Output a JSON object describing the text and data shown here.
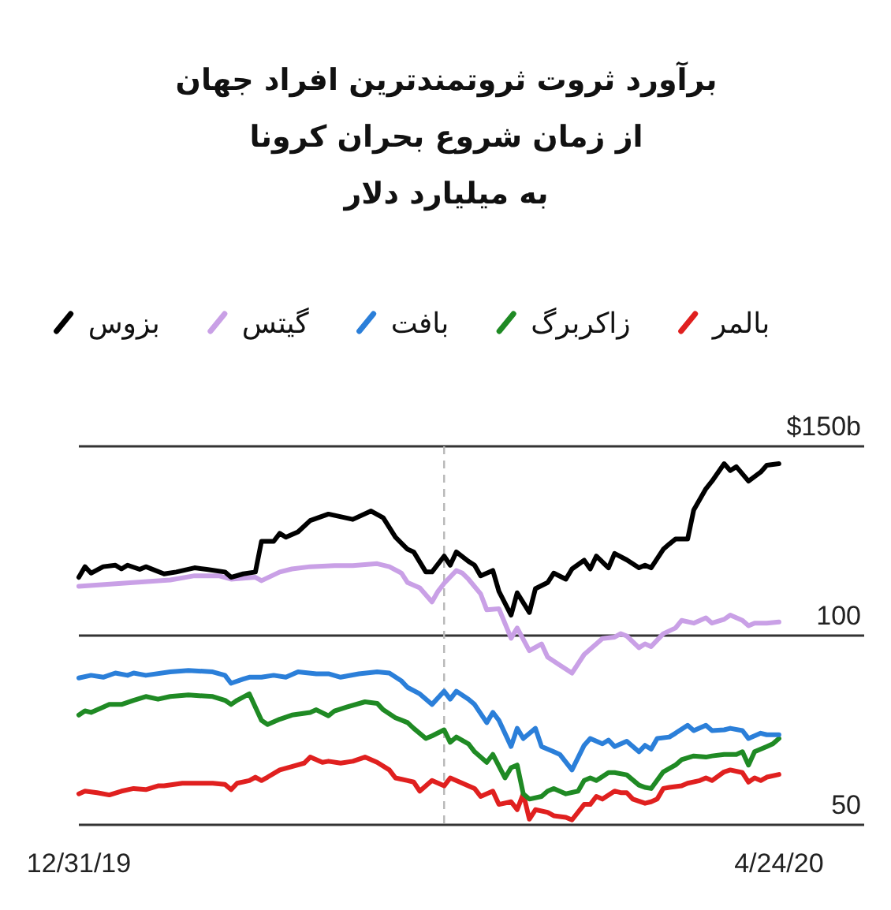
{
  "chart_data": {
    "type": "line",
    "title": "برآورد ثروت ثروتمندترین افراد جهان\nاز زمان شروع بحران کرونا",
    "subtitle": "به میلیارد دلار",
    "xlim": [
      "2019-12-31",
      "2020-05-08"
    ],
    "xticks": [
      {
        "value": "2019-12-31",
        "label": "12/31/19"
      },
      {
        "value": "2020-04-24",
        "label": "4/24/20"
      }
    ],
    "ylim": [
      50,
      150
    ],
    "yticks": [
      {
        "value": 150,
        "label": "$150b"
      },
      100,
      50
    ],
    "grid": "y",
    "legend": "top",
    "ref_lines": [
      {
        "axis": "x",
        "value": "2020-02-29",
        "color": "#b8b8b8",
        "line_style": "dashed"
      }
    ],
    "series": [
      {
        "name": "بالمر",
        "color": "#e0201f",
        "x": [
          "2019-12-31",
          "2020-01-01",
          "2020-01-03",
          "2020-01-05",
          "2020-01-07",
          "2020-01-09",
          "2020-01-11",
          "2020-01-13",
          "2020-01-14",
          "2020-01-17",
          "2020-01-19",
          "2020-01-22",
          "2020-01-24",
          "2020-01-25",
          "2020-01-26",
          "2020-01-28",
          "2020-01-29",
          "2020-01-30",
          "2020-01-31",
          "2020-02-02",
          "2020-02-04",
          "2020-02-06",
          "2020-02-07",
          "2020-02-09",
          "2020-02-10",
          "2020-02-12",
          "2020-02-14",
          "2020-02-16",
          "2020-02-18",
          "2020-02-20",
          "2020-02-21",
          "2020-02-23",
          "2020-02-24",
          "2020-02-25",
          "2020-02-27",
          "2020-02-29",
          "2020-03-01",
          "2020-03-03",
          "2020-03-05",
          "2020-03-06",
          "2020-03-08",
          "2020-03-09",
          "2020-03-11",
          "2020-03-12",
          "2020-03-13",
          "2020-03-14",
          "2020-03-15",
          "2020-03-17",
          "2020-03-18",
          "2020-03-20",
          "2020-03-21",
          "2020-03-23",
          "2020-03-24",
          "2020-03-25",
          "2020-03-26",
          "2020-03-28",
          "2020-03-29",
          "2020-03-30",
          "2020-03-31",
          "2020-04-02",
          "2020-04-03",
          "2020-04-04",
          "2020-04-05",
          "2020-04-06",
          "2020-04-08",
          "2020-04-09",
          "2020-04-11",
          "2020-04-12",
          "2020-04-13",
          "2020-04-15",
          "2020-04-16",
          "2020-04-18",
          "2020-04-19",
          "2020-04-20",
          "2020-04-21",
          "2020-04-22",
          "2020-04-24"
        ],
        "values": [
          58.2,
          58.9,
          58.5,
          57.9,
          58.9,
          59.6,
          59.3,
          60.3,
          60.3,
          61.0,
          61.0,
          61.0,
          60.7,
          59.3,
          61.0,
          61.7,
          62.6,
          61.7,
          62.6,
          64.5,
          65.4,
          66.3,
          67.9,
          66.5,
          66.8,
          66.3,
          66.8,
          67.9,
          66.5,
          64.5,
          62.4,
          61.7,
          61.3,
          58.9,
          61.7,
          60.3,
          62.4,
          61.0,
          59.6,
          57.5,
          58.9,
          55.4,
          56.1,
          54.0,
          58.2,
          51.5,
          54.0,
          53.3,
          52.4,
          52.0,
          51.3,
          55.4,
          55.4,
          57.5,
          56.8,
          58.9,
          58.5,
          58.5,
          56.8,
          55.7,
          56.1,
          56.8,
          59.6,
          59.9,
          60.3,
          61.0,
          61.7,
          62.4,
          61.7,
          64.0,
          64.5,
          63.8,
          61.3,
          62.4,
          61.7,
          62.6,
          63.3
        ]
      },
      {
        "name": "زاکربرگ",
        "color": "#1f8a24",
        "x": [
          "2019-12-31",
          "2020-01-01",
          "2020-01-02",
          "2020-01-04",
          "2020-01-05",
          "2020-01-07",
          "2020-01-09",
          "2020-01-11",
          "2020-01-13",
          "2020-01-15",
          "2020-01-18",
          "2020-01-22",
          "2020-01-24",
          "2020-01-25",
          "2020-01-26",
          "2020-01-28",
          "2020-01-29",
          "2020-01-30",
          "2020-01-31",
          "2020-02-02",
          "2020-02-04",
          "2020-02-07",
          "2020-02-08",
          "2020-02-10",
          "2020-02-11",
          "2020-02-13",
          "2020-02-16",
          "2020-02-18",
          "2020-02-19",
          "2020-02-21",
          "2020-02-23",
          "2020-02-24",
          "2020-02-26",
          "2020-02-27",
          "2020-02-29",
          "2020-03-01",
          "2020-03-02",
          "2020-03-04",
          "2020-03-05",
          "2020-03-07",
          "2020-03-08",
          "2020-03-10",
          "2020-03-11",
          "2020-03-12",
          "2020-03-13",
          "2020-03-14",
          "2020-03-16",
          "2020-03-17",
          "2020-03-18",
          "2020-03-20",
          "2020-03-22",
          "2020-03-23",
          "2020-03-24",
          "2020-03-25",
          "2020-03-27",
          "2020-03-28",
          "2020-03-30",
          "2020-04-01",
          "2020-04-02",
          "2020-04-03",
          "2020-04-05",
          "2020-04-07",
          "2020-04-08",
          "2020-04-10",
          "2020-04-12",
          "2020-04-13",
          "2020-04-15",
          "2020-04-17",
          "2020-04-18",
          "2020-04-19",
          "2020-04-20",
          "2020-04-22",
          "2020-04-23",
          "2020-04-24"
        ],
        "values": [
          79.0,
          80.1,
          79.7,
          81.1,
          81.8,
          81.8,
          82.9,
          83.9,
          83.2,
          83.9,
          84.3,
          83.9,
          82.9,
          81.8,
          82.9,
          84.6,
          81.1,
          77.6,
          76.5,
          77.9,
          79.0,
          79.7,
          80.4,
          78.8,
          80.1,
          81.1,
          82.5,
          82.1,
          80.4,
          78.3,
          77.0,
          75.5,
          72.8,
          73.5,
          75.1,
          71.8,
          73.2,
          71.4,
          69.3,
          66.5,
          68.6,
          62.4,
          65.1,
          65.8,
          58.2,
          56.8,
          57.5,
          58.9,
          59.6,
          58.2,
          58.9,
          61.7,
          62.4,
          61.7,
          63.8,
          63.8,
          63.2,
          60.5,
          59.9,
          59.6,
          64.0,
          65.8,
          67.2,
          68.2,
          67.9,
          68.2,
          68.6,
          68.6,
          69.3,
          65.8,
          69.3,
          70.7,
          71.4,
          72.8
        ]
      },
      {
        "name": "بافت",
        "color": "#2b7fd9",
        "x": [
          "2019-12-31",
          "2020-01-02",
          "2020-01-04",
          "2020-01-06",
          "2020-01-08",
          "2020-01-09",
          "2020-01-11",
          "2020-01-15",
          "2020-01-18",
          "2020-01-22",
          "2020-01-24",
          "2020-01-25",
          "2020-01-27",
          "2020-01-28",
          "2020-01-30",
          "2020-02-01",
          "2020-02-03",
          "2020-02-05",
          "2020-02-08",
          "2020-02-10",
          "2020-02-12",
          "2020-02-15",
          "2020-02-18",
          "2020-02-20",
          "2020-02-22",
          "2020-02-23",
          "2020-02-25",
          "2020-02-27",
          "2020-02-29",
          "2020-03-01",
          "2020-03-02",
          "2020-03-04",
          "2020-03-05",
          "2020-03-07",
          "2020-03-08",
          "2020-03-09",
          "2020-03-11",
          "2020-03-12",
          "2020-03-13",
          "2020-03-15",
          "2020-03-16",
          "2020-03-18",
          "2020-03-19",
          "2020-03-21",
          "2020-03-23",
          "2020-03-24",
          "2020-03-26",
          "2020-03-27",
          "2020-03-28",
          "2020-03-30",
          "2020-04-01",
          "2020-04-02",
          "2020-04-03",
          "2020-04-04",
          "2020-04-06",
          "2020-04-07",
          "2020-04-09",
          "2020-04-10",
          "2020-04-12",
          "2020-04-13",
          "2020-04-15",
          "2020-04-16",
          "2020-04-18",
          "2020-04-19",
          "2020-04-21",
          "2020-04-22",
          "2020-04-24"
        ],
        "values": [
          88.8,
          89.5,
          89.0,
          90.1,
          89.5,
          90.1,
          89.5,
          90.4,
          90.8,
          90.4,
          89.5,
          87.4,
          88.5,
          89.0,
          89.0,
          89.5,
          89.0,
          90.4,
          89.9,
          89.9,
          89.0,
          89.9,
          90.4,
          90.1,
          88.0,
          86.3,
          84.6,
          81.8,
          85.3,
          83.2,
          85.3,
          83.2,
          81.8,
          77.0,
          79.7,
          77.6,
          70.7,
          75.5,
          72.8,
          75.5,
          70.7,
          69.3,
          68.6,
          64.5,
          71.0,
          72.8,
          71.4,
          72.4,
          70.7,
          72.1,
          69.3,
          71.0,
          70.0,
          72.8,
          73.2,
          74.2,
          76.3,
          74.9,
          76.3,
          74.9,
          75.1,
          75.5,
          74.9,
          72.8,
          74.2,
          73.8,
          73.8
        ]
      },
      {
        "name": "گیتس",
        "color": "#c9a0e6",
        "x": [
          "2019-12-31",
          "2020-01-07",
          "2020-01-15",
          "2020-01-19",
          "2020-01-23",
          "2020-01-25",
          "2020-01-29",
          "2020-01-30",
          "2020-02-02",
          "2020-02-04",
          "2020-02-07",
          "2020-02-11",
          "2020-02-14",
          "2020-02-18",
          "2020-02-20",
          "2020-02-22",
          "2020-02-23",
          "2020-02-25",
          "2020-02-27",
          "2020-02-28",
          "2020-02-29",
          "2020-03-02",
          "2020-03-03",
          "2020-03-04",
          "2020-03-06",
          "2020-03-07",
          "2020-03-09",
          "2020-03-11",
          "2020-03-12",
          "2020-03-14",
          "2020-03-16",
          "2020-03-17",
          "2020-03-19",
          "2020-03-21",
          "2020-03-23",
          "2020-03-24",
          "2020-03-26",
          "2020-03-28",
          "2020-03-29",
          "2020-03-30",
          "2020-04-01",
          "2020-04-02",
          "2020-04-03",
          "2020-04-05",
          "2020-04-07",
          "2020-04-08",
          "2020-04-10",
          "2020-04-12",
          "2020-04-13",
          "2020-04-15",
          "2020-04-16",
          "2020-04-18",
          "2020-04-19",
          "2020-04-20",
          "2020-04-22",
          "2020-04-24"
        ],
        "values": [
          113.0,
          113.8,
          114.7,
          115.8,
          115.8,
          114.9,
          115.4,
          114.5,
          116.8,
          117.6,
          118.2,
          118.5,
          118.5,
          119.0,
          118.2,
          116.5,
          114.0,
          112.6,
          108.9,
          111.7,
          113.8,
          117.2,
          116.5,
          114.9,
          111.0,
          106.8,
          107.1,
          99.3,
          102.0,
          96.0,
          97.8,
          94.3,
          92.2,
          90.1,
          95.0,
          96.4,
          99.2,
          99.6,
          100.5,
          99.9,
          96.8,
          97.8,
          97.1,
          100.5,
          102.0,
          104.0,
          103.3,
          104.7,
          103.3,
          104.3,
          105.4,
          104.0,
          102.6,
          103.3,
          103.3,
          103.6
        ]
      },
      {
        "name": "بزوس",
        "color": "#000000",
        "x": [
          "2019-12-31",
          "2020-01-01",
          "2020-01-02",
          "2020-01-04",
          "2020-01-06",
          "2020-01-07",
          "2020-01-08",
          "2020-01-10",
          "2020-01-11",
          "2020-01-14",
          "2020-01-16",
          "2020-01-19",
          "2020-01-21",
          "2020-01-24",
          "2020-01-25",
          "2020-01-27",
          "2020-01-29",
          "2020-01-30",
          "2020-02-01",
          "2020-02-02",
          "2020-02-03",
          "2020-02-05",
          "2020-02-07",
          "2020-02-10",
          "2020-02-14",
          "2020-02-17",
          "2020-02-19",
          "2020-02-21",
          "2020-02-23",
          "2020-02-24",
          "2020-02-26",
          "2020-02-27",
          "2020-02-29",
          "2020-03-01",
          "2020-03-02",
          "2020-03-04",
          "2020-03-05",
          "2020-03-06",
          "2020-03-08",
          "2020-03-09",
          "2020-03-11",
          "2020-03-12",
          "2020-03-14",
          "2020-03-15",
          "2020-03-17",
          "2020-03-18",
          "2020-03-20",
          "2020-03-21",
          "2020-03-23",
          "2020-03-24",
          "2020-03-25",
          "2020-03-27",
          "2020-03-28",
          "2020-03-30",
          "2020-04-01",
          "2020-04-02",
          "2020-04-03",
          "2020-04-05",
          "2020-04-06",
          "2020-04-07",
          "2020-04-09",
          "2020-04-10",
          "2020-04-12",
          "2020-04-13",
          "2020-04-15",
          "2020-04-16",
          "2020-04-17",
          "2020-04-19",
          "2020-04-21",
          "2020-04-22",
          "2020-04-24"
        ],
        "values": [
          115.4,
          118.2,
          116.5,
          118.2,
          118.6,
          117.6,
          118.6,
          117.5,
          118.2,
          116.3,
          116.8,
          117.9,
          117.5,
          116.8,
          115.4,
          116.3,
          116.8,
          124.9,
          124.9,
          127.0,
          126.0,
          127.4,
          130.4,
          132.1,
          130.7,
          132.9,
          131.1,
          126.0,
          122.8,
          122.1,
          116.8,
          116.8,
          121.0,
          118.6,
          122.1,
          119.6,
          118.6,
          115.8,
          117.2,
          111.7,
          105.4,
          111.3,
          106.1,
          112.4,
          114.0,
          116.5,
          114.9,
          117.6,
          119.9,
          117.6,
          121.0,
          117.9,
          121.7,
          120.0,
          117.9,
          118.6,
          117.9,
          122.8,
          124.2,
          125.5,
          125.5,
          133.2,
          138.8,
          140.8,
          145.4,
          143.6,
          144.6,
          140.8,
          143.2,
          145.0,
          145.4
        ]
      }
    ]
  }
}
